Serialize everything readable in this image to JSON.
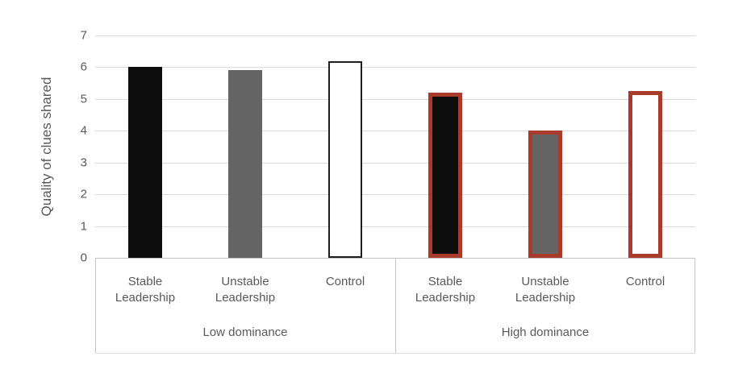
{
  "chart_data": {
    "type": "bar",
    "title": "",
    "ylabel": "Quality of clues shared",
    "xlabel": "",
    "ylim": [
      0,
      7
    ],
    "yticks": [
      0,
      1,
      2,
      3,
      4,
      5,
      6,
      7
    ],
    "grid": true,
    "legend": "none",
    "groups": [
      {
        "label": "Low dominance",
        "bars": [
          {
            "name": "low-stable",
            "label_lines": [
              "Stable",
              "Leadership"
            ],
            "value": 6.0,
            "fill": "#0d0d0d",
            "border": null
          },
          {
            "name": "low-unstable",
            "label_lines": [
              "Unstable",
              "Leadership"
            ],
            "value": 5.9,
            "fill": "#646464",
            "border": null
          },
          {
            "name": "low-control",
            "label_lines": [
              "Control"
            ],
            "value": 6.2,
            "fill": "#ffffff",
            "border": {
              "color": "#1f1f1f",
              "width": 2
            }
          }
        ]
      },
      {
        "label": "High dominance",
        "bars": [
          {
            "name": "high-stable",
            "label_lines": [
              "Stable",
              "Leadership"
            ],
            "value": 5.2,
            "fill": "#0d0d0d",
            "border": {
              "color": "#a93b2c",
              "width": 5
            }
          },
          {
            "name": "high-unstable",
            "label_lines": [
              "Unstable",
              "Leadership"
            ],
            "value": 4.0,
            "fill": "#646464",
            "border": {
              "color": "#a93b2c",
              "width": 5
            }
          },
          {
            "name": "high-control",
            "label_lines": [
              "Control"
            ],
            "value": 5.25,
            "fill": "#ffffff",
            "border": {
              "color": "#a93b2c",
              "width": 5
            }
          }
        ]
      }
    ],
    "colors": {
      "black_fill": "#0d0d0d",
      "gray_fill": "#646464",
      "white_fill": "#ffffff",
      "red_border": "#a93b2c",
      "axis_text": "#595959"
    }
  }
}
